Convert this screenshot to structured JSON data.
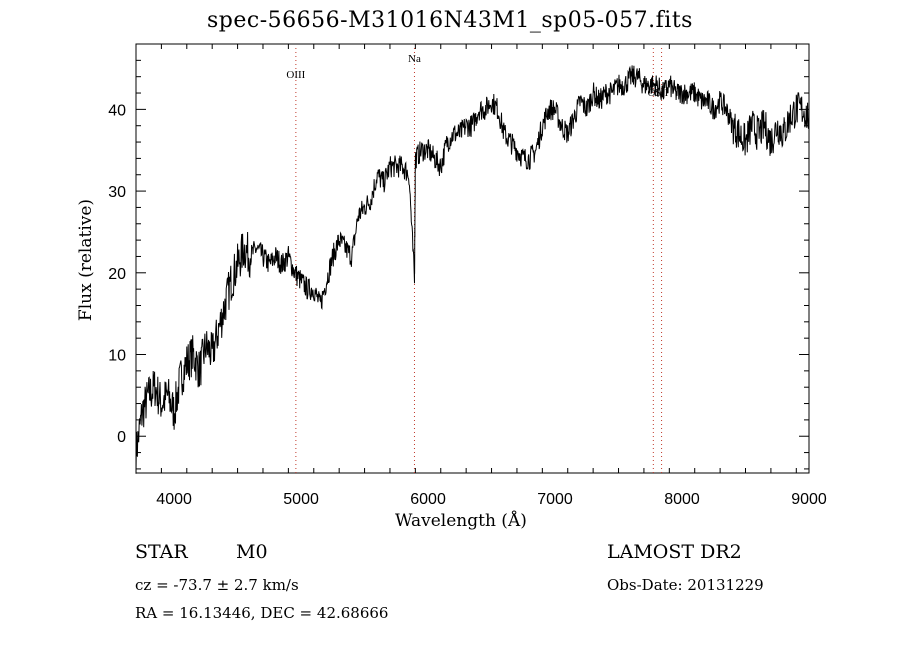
{
  "chart_data": {
    "type": "line",
    "title": "spec-56656-M31016N43M1_sp05-057.fits",
    "xlabel": "Wavelength (Å)",
    "ylabel": "Flux (relative)",
    "xlim": [
      3700,
      9000
    ],
    "ylim": [
      -4.5,
      48
    ],
    "xticks": [
      4000,
      5000,
      6000,
      7000,
      8000,
      9000
    ],
    "yticks": [
      0,
      10,
      20,
      30,
      40
    ],
    "line_color": "#000000",
    "marker_color": "#c0392b",
    "lines": [
      {
        "name": "OIII",
        "x": 4959
      },
      {
        "name": "Na",
        "x": 5893
      },
      {
        "name": "OI",
        "x": 7774
      },
      {
        "name": "SII",
        "x": 7839
      }
    ],
    "series": [
      {
        "x": [
          3700,
          3750,
          3800,
          3850,
          3900,
          3950,
          4000,
          4050,
          4100,
          4150,
          4200,
          4250,
          4300,
          4350,
          4400,
          4450,
          4500,
          4550,
          4600,
          4650,
          4700,
          4750,
          4800,
          4850,
          4900,
          4950,
          5000,
          5050,
          5100,
          5150,
          5200,
          5250,
          5300,
          5350,
          5400,
          5450,
          5500,
          5550,
          5600,
          5650,
          5700,
          5750,
          5800,
          5850,
          5893,
          5900,
          5950,
          6000,
          6050,
          6100,
          6150,
          6200,
          6250,
          6300,
          6350,
          6400,
          6450,
          6500,
          6550,
          6600,
          6650,
          6700,
          6750,
          6800,
          6850,
          6900,
          6950,
          7000,
          7050,
          7100,
          7150,
          7200,
          7250,
          7300,
          7350,
          7400,
          7450,
          7500,
          7550,
          7600,
          7650,
          7700,
          7750,
          7800,
          7850,
          7900,
          7950,
          8000,
          8050,
          8100,
          8150,
          8200,
          8250,
          8300,
          8350,
          8400,
          8450,
          8500,
          8550,
          8600,
          8650,
          8700,
          8750,
          8800,
          8850,
          8900,
          8950,
          9000
        ],
        "y": [
          -2,
          3,
          5,
          6,
          4,
          5,
          3,
          7,
          9,
          10,
          8,
          11,
          10,
          13,
          16,
          19,
          21,
          23,
          22,
          23,
          22,
          21,
          22,
          21,
          22,
          20,
          19,
          18,
          18,
          16,
          19,
          22,
          24,
          23,
          22,
          27,
          28,
          29,
          32,
          31,
          33,
          33,
          33,
          32,
          19,
          34,
          35,
          35,
          34,
          33,
          36,
          37,
          37,
          38,
          38,
          40,
          40,
          41,
          40,
          37,
          36,
          35,
          34,
          34,
          35,
          38,
          40,
          40,
          38,
          37,
          39,
          41,
          40,
          42,
          41,
          42,
          42,
          43,
          43,
          44,
          44,
          43,
          43,
          43,
          42,
          43,
          42,
          42,
          42,
          42,
          41,
          41,
          40,
          41,
          40,
          38,
          37,
          36,
          38,
          37,
          38,
          36,
          38,
          37,
          39,
          40,
          40,
          39
        ]
      }
    ]
  },
  "footer": {
    "class_label": "STAR",
    "subclass": "M0",
    "survey": "LAMOST DR2",
    "cz": "cz = -73.7 ± 2.7 km/s",
    "obs_date": "Obs-Date: 20131229",
    "coords": "RA =  16.13446, DEC =  42.68666"
  }
}
